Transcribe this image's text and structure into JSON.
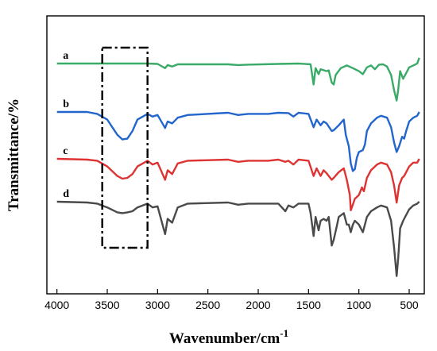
{
  "chart_data": {
    "type": "line",
    "title": "",
    "xlabel": "Wavenumber/cm",
    "xlabel_superscript": "-1",
    "ylabel": "Transmittance/%",
    "xlim": [
      4100,
      350
    ],
    "x_reversed": true,
    "xticks": [
      4000,
      3500,
      3000,
      2500,
      2000,
      1500,
      1000,
      500
    ],
    "yticks_shown": false,
    "grid": false,
    "legend": "inline labels at left of each trace",
    "annotation": "dash-dot rectangle highlighting region approx. 3550-3100 cm-1",
    "highlight_range": [
      3550,
      3100
    ],
    "series": [
      {
        "name": "a",
        "color": "#3aaa68",
        "offset": 1.0,
        "points": [
          [
            4000,
            0.0
          ],
          [
            3600,
            0.0
          ],
          [
            3100,
            0.0
          ],
          [
            3000,
            0.01
          ],
          [
            2925,
            0.12
          ],
          [
            2900,
            0.04
          ],
          [
            2855,
            0.08
          ],
          [
            2800,
            0.02
          ],
          [
            2300,
            0.02
          ],
          [
            2200,
            0.04
          ],
          [
            2100,
            0.03
          ],
          [
            1800,
            0.01
          ],
          [
            1600,
            0.0
          ],
          [
            1480,
            0.02
          ],
          [
            1450,
            0.55
          ],
          [
            1430,
            0.12
          ],
          [
            1400,
            0.28
          ],
          [
            1380,
            0.15
          ],
          [
            1320,
            0.2
          ],
          [
            1300,
            0.18
          ],
          [
            1270,
            0.5
          ],
          [
            1250,
            0.55
          ],
          [
            1230,
            0.3
          ],
          [
            1180,
            0.12
          ],
          [
            1120,
            0.05
          ],
          [
            1060,
            0.12
          ],
          [
            1000,
            0.2
          ],
          [
            960,
            0.28
          ],
          [
            920,
            0.1
          ],
          [
            880,
            0.05
          ],
          [
            840,
            0.15
          ],
          [
            800,
            0.03
          ],
          [
            760,
            0.02
          ],
          [
            720,
            0.08
          ],
          [
            680,
            0.3
          ],
          [
            650,
            0.7
          ],
          [
            625,
            0.97
          ],
          [
            610,
            0.7
          ],
          [
            590,
            0.2
          ],
          [
            560,
            0.4
          ],
          [
            540,
            0.3
          ],
          [
            500,
            0.1
          ],
          [
            460,
            0.05
          ],
          [
            420,
            0.0
          ],
          [
            400,
            -0.15
          ]
        ]
      },
      {
        "name": "b",
        "color": "#2266cc",
        "offset": 0.0,
        "points": [
          [
            4000,
            0.0
          ],
          [
            3700,
            0.0
          ],
          [
            3600,
            0.05
          ],
          [
            3500,
            0.2
          ],
          [
            3400,
            0.6
          ],
          [
            3350,
            0.72
          ],
          [
            3300,
            0.7
          ],
          [
            3250,
            0.5
          ],
          [
            3200,
            0.2
          ],
          [
            3100,
            0.05
          ],
          [
            3050,
            0.12
          ],
          [
            3000,
            0.08
          ],
          [
            2925,
            0.42
          ],
          [
            2900,
            0.25
          ],
          [
            2855,
            0.3
          ],
          [
            2800,
            0.15
          ],
          [
            2700,
            0.08
          ],
          [
            2300,
            0.02
          ],
          [
            2200,
            0.08
          ],
          [
            2100,
            0.05
          ],
          [
            1900,
            0.05
          ],
          [
            1800,
            0.02
          ],
          [
            1700,
            0.03
          ],
          [
            1650,
            0.12
          ],
          [
            1600,
            0.02
          ],
          [
            1500,
            0.05
          ],
          [
            1450,
            0.4
          ],
          [
            1420,
            0.2
          ],
          [
            1380,
            0.35
          ],
          [
            1350,
            0.25
          ],
          [
            1320,
            0.3
          ],
          [
            1270,
            0.5
          ],
          [
            1250,
            0.48
          ],
          [
            1200,
            0.35
          ],
          [
            1150,
            0.2
          ],
          [
            1130,
            0.6
          ],
          [
            1100,
            0.9
          ],
          [
            1080,
            1.35
          ],
          [
            1060,
            1.55
          ],
          [
            1040,
            1.5
          ],
          [
            1020,
            1.2
          ],
          [
            1000,
            1.05
          ],
          [
            960,
            1.0
          ],
          [
            940,
            0.85
          ],
          [
            920,
            0.5
          ],
          [
            880,
            0.3
          ],
          [
            820,
            0.15
          ],
          [
            780,
            0.1
          ],
          [
            720,
            0.15
          ],
          [
            680,
            0.4
          ],
          [
            650,
            0.8
          ],
          [
            625,
            1.05
          ],
          [
            600,
            0.9
          ],
          [
            570,
            0.65
          ],
          [
            550,
            0.7
          ],
          [
            530,
            0.5
          ],
          [
            500,
            0.25
          ],
          [
            460,
            0.15
          ],
          [
            420,
            0.1
          ],
          [
            400,
            0.0
          ]
        ]
      },
      {
        "name": "c",
        "color": "#dd3333",
        "offset": 0.0,
        "points": [
          [
            4000,
            0.0
          ],
          [
            3700,
            0.02
          ],
          [
            3600,
            0.05
          ],
          [
            3500,
            0.2
          ],
          [
            3400,
            0.45
          ],
          [
            3350,
            0.52
          ],
          [
            3300,
            0.5
          ],
          [
            3250,
            0.4
          ],
          [
            3200,
            0.2
          ],
          [
            3100,
            0.05
          ],
          [
            3050,
            0.15
          ],
          [
            3000,
            0.1
          ],
          [
            2925,
            0.55
          ],
          [
            2900,
            0.3
          ],
          [
            2855,
            0.4
          ],
          [
            2800,
            0.12
          ],
          [
            2700,
            0.05
          ],
          [
            2300,
            0.02
          ],
          [
            2200,
            0.08
          ],
          [
            2100,
            0.05
          ],
          [
            1900,
            0.05
          ],
          [
            1800,
            0.02
          ],
          [
            1730,
            0.08
          ],
          [
            1700,
            0.05
          ],
          [
            1650,
            0.15
          ],
          [
            1600,
            0.02
          ],
          [
            1500,
            0.05
          ],
          [
            1450,
            0.45
          ],
          [
            1420,
            0.25
          ],
          [
            1380,
            0.45
          ],
          [
            1350,
            0.3
          ],
          [
            1320,
            0.38
          ],
          [
            1270,
            0.55
          ],
          [
            1250,
            0.5
          ],
          [
            1200,
            0.35
          ],
          [
            1150,
            0.25
          ],
          [
            1120,
            0.55
          ],
          [
            1090,
            0.95
          ],
          [
            1080,
            1.35
          ],
          [
            1060,
            1.2
          ],
          [
            1040,
            1.05
          ],
          [
            1000,
            0.95
          ],
          [
            970,
            0.75
          ],
          [
            950,
            0.85
          ],
          [
            920,
            0.5
          ],
          [
            880,
            0.3
          ],
          [
            820,
            0.15
          ],
          [
            780,
            0.1
          ],
          [
            720,
            0.15
          ],
          [
            680,
            0.35
          ],
          [
            650,
            0.7
          ],
          [
            625,
            1.15
          ],
          [
            600,
            0.7
          ],
          [
            570,
            0.5
          ],
          [
            550,
            0.45
          ],
          [
            530,
            0.35
          ],
          [
            500,
            0.2
          ],
          [
            460,
            0.1
          ],
          [
            420,
            0.1
          ],
          [
            400,
            0.0
          ]
        ]
      },
      {
        "name": "d",
        "color": "#4a4a4a",
        "offset": 0.0,
        "points": [
          [
            4000,
            0.0
          ],
          [
            3700,
            0.02
          ],
          [
            3600,
            0.05
          ],
          [
            3500,
            0.15
          ],
          [
            3400,
            0.28
          ],
          [
            3350,
            0.3
          ],
          [
            3300,
            0.28
          ],
          [
            3250,
            0.25
          ],
          [
            3200,
            0.15
          ],
          [
            3100,
            0.05
          ],
          [
            3050,
            0.15
          ],
          [
            3000,
            0.12
          ],
          [
            2925,
            0.85
          ],
          [
            2900,
            0.45
          ],
          [
            2855,
            0.55
          ],
          [
            2800,
            0.15
          ],
          [
            2700,
            0.05
          ],
          [
            2300,
            0.02
          ],
          [
            2200,
            0.08
          ],
          [
            2100,
            0.05
          ],
          [
            1900,
            0.05
          ],
          [
            1800,
            0.05
          ],
          [
            1730,
            0.25
          ],
          [
            1700,
            0.1
          ],
          [
            1650,
            0.15
          ],
          [
            1600,
            0.05
          ],
          [
            1500,
            0.05
          ],
          [
            1480,
            0.3
          ],
          [
            1450,
            0.9
          ],
          [
            1430,
            0.4
          ],
          [
            1400,
            0.75
          ],
          [
            1380,
            0.5
          ],
          [
            1350,
            0.45
          ],
          [
            1320,
            0.5
          ],
          [
            1300,
            0.4
          ],
          [
            1270,
            1.15
          ],
          [
            1250,
            1.0
          ],
          [
            1220,
            0.65
          ],
          [
            1200,
            0.4
          ],
          [
            1150,
            0.3
          ],
          [
            1120,
            0.6
          ],
          [
            1100,
            0.6
          ],
          [
            1080,
            0.8
          ],
          [
            1060,
            0.6
          ],
          [
            1040,
            0.5
          ],
          [
            1000,
            0.6
          ],
          [
            960,
            0.8
          ],
          [
            920,
            0.4
          ],
          [
            880,
            0.25
          ],
          [
            820,
            0.15
          ],
          [
            780,
            0.1
          ],
          [
            720,
            0.15
          ],
          [
            680,
            0.5
          ],
          [
            650,
            1.2
          ],
          [
            625,
            1.95
          ],
          [
            610,
            1.5
          ],
          [
            590,
            0.7
          ],
          [
            560,
            0.5
          ],
          [
            540,
            0.4
          ],
          [
            500,
            0.2
          ],
          [
            460,
            0.1
          ],
          [
            420,
            0.05
          ],
          [
            400,
            0.0
          ]
        ]
      }
    ]
  }
}
